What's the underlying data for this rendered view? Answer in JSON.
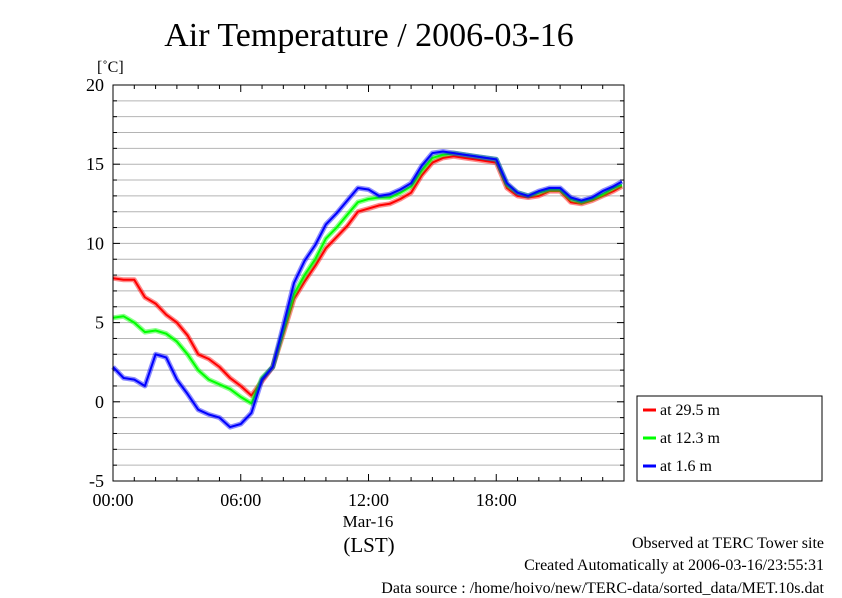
{
  "chart_data": {
    "type": "line",
    "title": "Air Temperature / 2006-03-16",
    "ylabel": "[˚C]",
    "xlabel": "(LST)",
    "x_date_label": "Mar-16",
    "xlim": [
      0,
      24
    ],
    "ylim": [
      -5,
      20
    ],
    "xticks": [
      {
        "value": 0,
        "label": "00:00"
      },
      {
        "value": 6,
        "label": "06:00"
      },
      {
        "value": 12,
        "label": "12:00"
      },
      {
        "value": 18,
        "label": "18:00"
      }
    ],
    "yticks": [
      -5,
      0,
      5,
      10,
      15,
      20
    ],
    "grid": true,
    "legend_position": "right-bottom",
    "x": [
      0,
      0.5,
      1,
      1.5,
      2,
      2.5,
      3,
      3.5,
      4,
      4.5,
      5,
      5.5,
      6,
      6.5,
      7,
      7.5,
      8,
      8.5,
      9,
      9.5,
      10,
      10.5,
      11,
      11.5,
      12,
      12.5,
      13,
      13.5,
      14,
      14.5,
      15,
      15.5,
      16,
      16.5,
      17,
      17.5,
      18,
      18.5,
      19,
      19.5,
      20,
      20.5,
      21,
      21.5,
      22,
      22.5,
      23,
      23.5,
      23.9
    ],
    "series": [
      {
        "name": "at 29.5 m",
        "color": "#ff0000",
        "values": [
          7.8,
          7.7,
          7.7,
          6.6,
          6.2,
          5.5,
          5.0,
          4.2,
          3.0,
          2.7,
          2.2,
          1.5,
          1.0,
          0.4,
          1.3,
          2.2,
          4.3,
          6.5,
          7.6,
          8.6,
          9.7,
          10.4,
          11.1,
          12.0,
          12.2,
          12.4,
          12.5,
          12.8,
          13.2,
          14.3,
          15.1,
          15.4,
          15.5,
          15.4,
          15.3,
          15.2,
          15.1,
          13.5,
          13.0,
          12.9,
          13.0,
          13.3,
          13.3,
          12.6,
          12.5,
          12.7,
          13.0,
          13.3,
          13.6
        ]
      },
      {
        "name": "at 12.3 m",
        "color": "#00ff00",
        "values": [
          5.3,
          5.4,
          5.0,
          4.4,
          4.5,
          4.3,
          3.8,
          3.0,
          2.0,
          1.4,
          1.1,
          0.8,
          0.3,
          -0.1,
          1.5,
          2.2,
          4.5,
          6.8,
          8.0,
          9.0,
          10.3,
          11.0,
          11.8,
          12.6,
          12.8,
          12.9,
          12.9,
          13.2,
          13.6,
          14.6,
          15.4,
          15.6,
          15.7,
          15.6,
          15.5,
          15.4,
          15.3,
          13.7,
          13.2,
          13.0,
          13.2,
          13.4,
          13.4,
          12.8,
          12.6,
          12.8,
          13.1,
          13.5,
          13.7
        ]
      },
      {
        "name": "at 1.6 m",
        "color": "#0000ff",
        "values": [
          2.2,
          1.5,
          1.4,
          1.0,
          3.0,
          2.8,
          1.4,
          0.5,
          -0.5,
          -0.8,
          -1.0,
          -1.6,
          -1.4,
          -0.7,
          1.4,
          2.2,
          4.8,
          7.5,
          8.9,
          9.9,
          11.2,
          11.9,
          12.7,
          13.5,
          13.4,
          13.0,
          13.1,
          13.4,
          13.8,
          14.9,
          15.7,
          15.8,
          15.7,
          15.6,
          15.5,
          15.4,
          15.3,
          13.8,
          13.2,
          13.0,
          13.3,
          13.5,
          13.5,
          12.9,
          12.7,
          12.9,
          13.3,
          13.6,
          13.9
        ]
      }
    ]
  },
  "footer": {
    "observed": "Observed at TERC Tower site",
    "created": "Created Automatically at 2006-03-16/23:55:31",
    "source": "Data source : /home/hoivo/new/TERC-data/sorted_data/MET.10s.dat"
  }
}
